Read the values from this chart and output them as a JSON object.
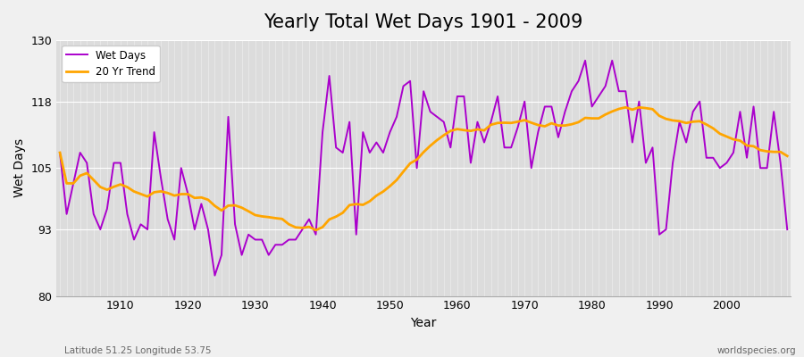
{
  "title": "Yearly Total Wet Days 1901 - 2009",
  "xlabel": "Year",
  "ylabel": "Wet Days",
  "footnote_left": "Latitude 51.25 Longitude 53.75",
  "footnote_right": "worldspecies.org",
  "ylim": [
    80,
    130
  ],
  "yticks": [
    80,
    93,
    105,
    118,
    130
  ],
  "background_color": "#f0f0f0",
  "plot_bg_color": "#dcdcdc",
  "wet_days_color": "#aa00cc",
  "trend_color": "#ffa500",
  "wet_days_linewidth": 1.4,
  "trend_linewidth": 2.0,
  "title_fontsize": 15,
  "years": [
    1901,
    1902,
    1903,
    1904,
    1905,
    1906,
    1907,
    1908,
    1909,
    1910,
    1911,
    1912,
    1913,
    1914,
    1915,
    1916,
    1917,
    1918,
    1919,
    1920,
    1921,
    1922,
    1923,
    1924,
    1925,
    1926,
    1927,
    1928,
    1929,
    1930,
    1931,
    1932,
    1933,
    1934,
    1935,
    1936,
    1937,
    1938,
    1939,
    1940,
    1941,
    1942,
    1943,
    1944,
    1945,
    1946,
    1947,
    1948,
    1949,
    1950,
    1951,
    1952,
    1953,
    1954,
    1955,
    1956,
    1957,
    1958,
    1959,
    1960,
    1961,
    1962,
    1963,
    1964,
    1965,
    1966,
    1967,
    1968,
    1969,
    1970,
    1971,
    1972,
    1973,
    1974,
    1975,
    1976,
    1977,
    1978,
    1979,
    1980,
    1981,
    1982,
    1983,
    1984,
    1985,
    1986,
    1987,
    1988,
    1989,
    1990,
    1991,
    1992,
    1993,
    1994,
    1995,
    1996,
    1997,
    1998,
    1999,
    2000,
    2001,
    2002,
    2003,
    2004,
    2005,
    2006,
    2007,
    2008,
    2009
  ],
  "wet_days": [
    108,
    96,
    102,
    108,
    106,
    96,
    93,
    97,
    106,
    106,
    96,
    91,
    94,
    93,
    112,
    103,
    95,
    91,
    105,
    100,
    93,
    98,
    93,
    84,
    88,
    115,
    94,
    88,
    92,
    91,
    91,
    88,
    90,
    90,
    91,
    91,
    93,
    95,
    92,
    112,
    123,
    109,
    108,
    114,
    92,
    112,
    108,
    110,
    108,
    112,
    115,
    121,
    122,
    105,
    120,
    116,
    115,
    114,
    109,
    119,
    119,
    106,
    114,
    110,
    114,
    119,
    109,
    109,
    113,
    118,
    105,
    112,
    117,
    117,
    111,
    116,
    120,
    122,
    126,
    117,
    119,
    121,
    126,
    120,
    120,
    110,
    118,
    106,
    109,
    92,
    93,
    106,
    114,
    110,
    116,
    118,
    107,
    107,
    105,
    106,
    108,
    116,
    107,
    117,
    105,
    105,
    116,
    106,
    93
  ]
}
